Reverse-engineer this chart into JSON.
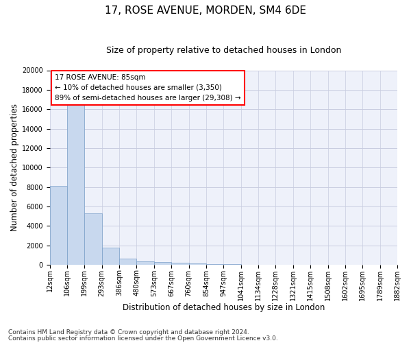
{
  "title_line1": "17, ROSE AVENUE, MORDEN, SM4 6DE",
  "title_line2": "Size of property relative to detached houses in London",
  "xlabel": "Distribution of detached houses by size in London",
  "ylabel": "Number of detached properties",
  "bar_values": [
    8100,
    16500,
    5300,
    1750,
    650,
    350,
    270,
    210,
    160,
    90,
    50,
    30,
    20,
    15,
    10,
    8,
    6,
    5,
    4,
    3
  ],
  "bar_labels": [
    "12sqm",
    "106sqm",
    "199sqm",
    "293sqm",
    "386sqm",
    "480sqm",
    "573sqm",
    "667sqm",
    "760sqm",
    "854sqm",
    "947sqm",
    "1041sqm",
    "1134sqm",
    "1228sqm",
    "1321sqm",
    "1415sqm",
    "1508sqm",
    "1602sqm",
    "1695sqm",
    "1789sqm",
    "1882sqm"
  ],
  "bar_color": "#c8d8ee",
  "bar_edge_color": "#7a9fc8",
  "background_color": "#eef1fa",
  "grid_color": "#c8cce0",
  "ylim": [
    0,
    20000
  ],
  "yticks": [
    0,
    2000,
    4000,
    6000,
    8000,
    10000,
    12000,
    14000,
    16000,
    18000,
    20000
  ],
  "annotation_text": "17 ROSE AVENUE: 85sqm\n← 10% of detached houses are smaller (3,350)\n89% of semi-detached houses are larger (29,308) →",
  "footer_line1": "Contains HM Land Registry data © Crown copyright and database right 2024.",
  "footer_line2": "Contains public sector information licensed under the Open Government Licence v3.0.",
  "title_fontsize": 11,
  "subtitle_fontsize": 9,
  "axis_label_fontsize": 8.5,
  "tick_fontsize": 7,
  "annotation_fontsize": 7.5,
  "footer_fontsize": 6.5
}
